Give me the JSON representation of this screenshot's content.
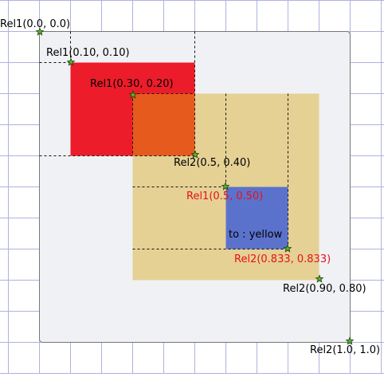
{
  "colors": {
    "grid": "#aeb2dd",
    "outer_fill": "#f0f1f4",
    "outer_stroke": "#777777",
    "red_fill": "#ed1c2a",
    "yellow_fill": "#e5d194",
    "orange_fill": "#e65a1e",
    "blue_fill": "#5b72cc",
    "red_text": "#e8101a",
    "marker_fill": "#5ab52c",
    "marker_stroke": "#1a3d0a",
    "dash": "#111111"
  },
  "labels": {
    "rel1_outer": "Rel1(0.0, 0.0)",
    "rel1_red": "Rel1(0.10, 0.10)",
    "rel1_yellow": "Rel1(0.30, 0.20)",
    "rel2_red": "Rel2(0.5, 0.40)",
    "rel1_blue": "Rel1(0.5, 0.50)",
    "blue_text": "to : yellow",
    "rel2_blue": "Rel2(0.833, 0.833)",
    "rel2_yellow": "Rel2(0.90, 0.80)",
    "rel2_outer": "Rel2(1.0, 1.0)"
  }
}
